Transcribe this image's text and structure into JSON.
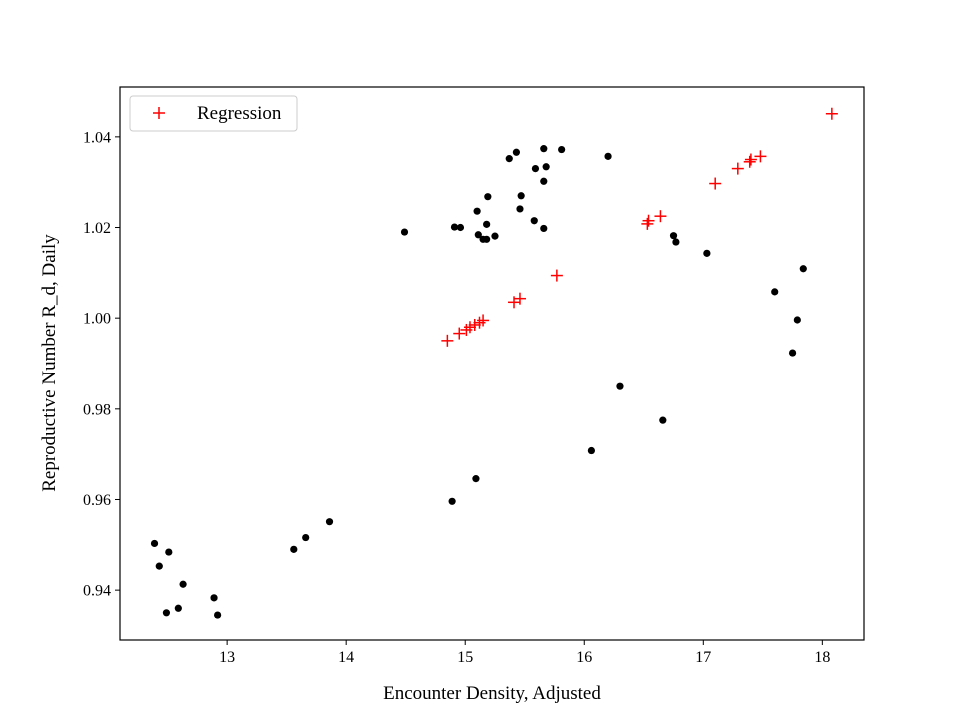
{
  "chart_data": {
    "type": "scatter",
    "title": "",
    "xlabel": "Encounter Density, Adjusted",
    "ylabel": "Reproductive Number R_d, Daily",
    "xlim": [
      12.1,
      18.35
    ],
    "ylim": [
      0.929,
      1.051
    ],
    "xticks": [
      13,
      14,
      15,
      16,
      17,
      18
    ],
    "xtick_labels": [
      "13",
      "14",
      "15",
      "16",
      "17",
      "18"
    ],
    "yticks": [
      0.94,
      0.96,
      0.98,
      1.0,
      1.02,
      1.04
    ],
    "ytick_labels": [
      "0.94",
      "0.96",
      "0.98",
      "1.00",
      "1.02",
      "1.04"
    ],
    "grid": false,
    "legend": {
      "position": "upper-left",
      "entries": [
        "Regression"
      ]
    },
    "series": [
      {
        "marker": "dot",
        "color": "#000000",
        "points": [
          [
            12.39,
            0.9503
          ],
          [
            12.43,
            0.9453
          ],
          [
            12.51,
            0.9484
          ],
          [
            12.49,
            0.935
          ],
          [
            12.59,
            0.936
          ],
          [
            12.63,
            0.9413
          ],
          [
            12.89,
            0.9383
          ],
          [
            12.92,
            0.9345
          ],
          [
            13.56,
            0.949
          ],
          [
            13.66,
            0.9516
          ],
          [
            13.86,
            0.9551
          ],
          [
            14.49,
            1.019
          ],
          [
            14.89,
            0.9596
          ],
          [
            14.91,
            1.0201
          ],
          [
            14.96,
            1.02
          ],
          [
            15.09,
            0.9646
          ],
          [
            15.1,
            1.0236
          ],
          [
            15.11,
            1.0184
          ],
          [
            15.15,
            1.0174
          ],
          [
            15.18,
            1.0174
          ],
          [
            15.18,
            1.0207
          ],
          [
            15.19,
            1.0268
          ],
          [
            15.25,
            1.0181
          ],
          [
            15.37,
            1.0352
          ],
          [
            15.43,
            1.0366
          ],
          [
            15.46,
            1.0241
          ],
          [
            15.47,
            1.027
          ],
          [
            15.58,
            1.0215
          ],
          [
            15.59,
            1.033
          ],
          [
            15.66,
            1.0374
          ],
          [
            15.66,
            1.0302
          ],
          [
            15.66,
            1.0198
          ],
          [
            15.68,
            1.0334
          ],
          [
            15.81,
            1.0372
          ],
          [
            16.06,
            0.9708
          ],
          [
            16.2,
            1.0357
          ],
          [
            16.3,
            0.985
          ],
          [
            16.66,
            0.9775
          ],
          [
            16.75,
            1.0182
          ],
          [
            16.77,
            1.0168
          ],
          [
            17.03,
            1.0143
          ],
          [
            17.6,
            1.0058
          ],
          [
            17.75,
            0.9923
          ],
          [
            17.79,
            0.9996
          ],
          [
            17.84,
            1.0109
          ]
        ]
      },
      {
        "name": "Regression",
        "marker": "plus",
        "color": "#ff0000",
        "points": [
          [
            14.85,
            0.995
          ],
          [
            14.95,
            0.9966
          ],
          [
            15.01,
            0.9974
          ],
          [
            15.04,
            0.998
          ],
          [
            15.08,
            0.9985
          ],
          [
            15.12,
            0.999
          ],
          [
            15.15,
            0.9995
          ],
          [
            15.41,
            1.0035
          ],
          [
            15.46,
            1.0043
          ],
          [
            15.77,
            1.0094
          ],
          [
            16.53,
            1.0208
          ],
          [
            16.54,
            1.0215
          ],
          [
            16.64,
            1.0225
          ],
          [
            17.1,
            1.0297
          ],
          [
            17.29,
            1.033
          ],
          [
            17.39,
            1.0345
          ],
          [
            17.4,
            1.035
          ],
          [
            17.48,
            1.0357
          ],
          [
            18.08,
            1.0451
          ]
        ]
      }
    ]
  }
}
